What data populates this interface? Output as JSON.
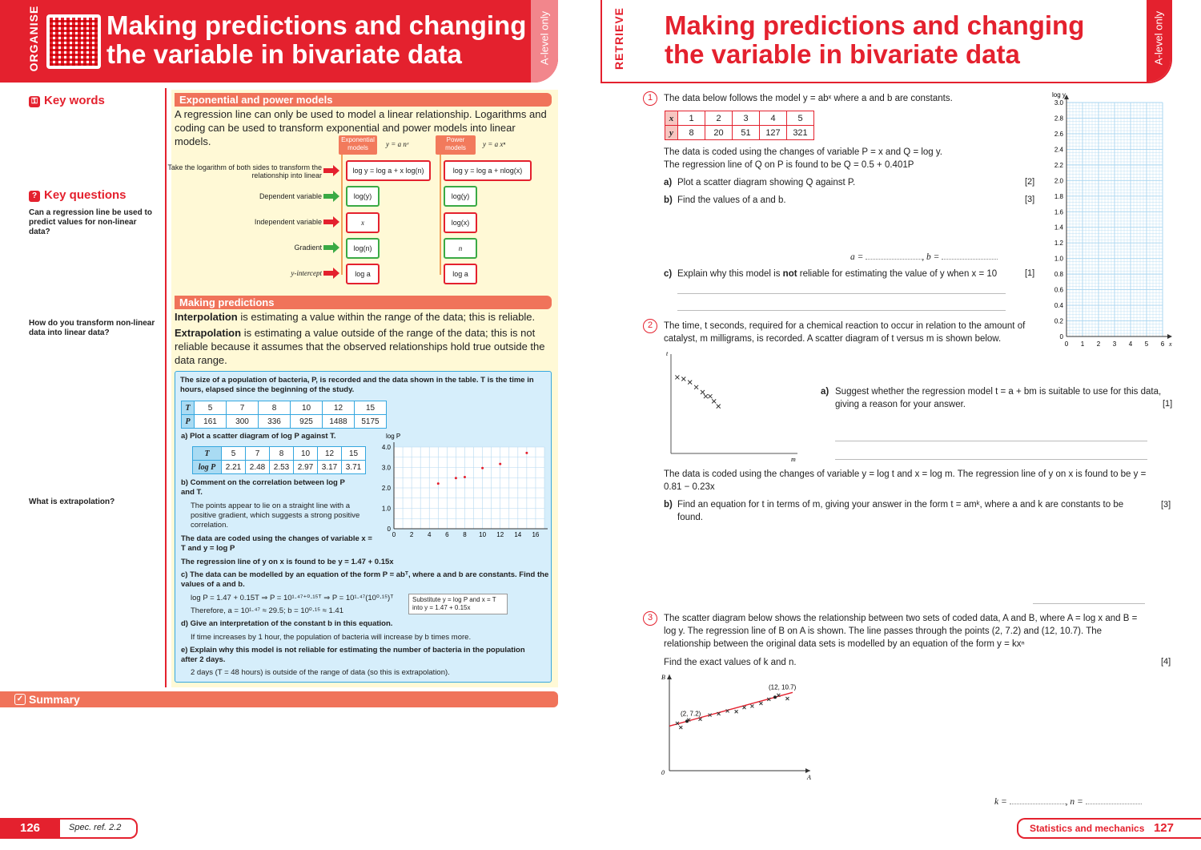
{
  "left_page": {
    "section_tag": "ORGANISE",
    "title": "Making predictions and changing the variable in bivariate data",
    "level_tag": "A-level only",
    "sidebar": {
      "key_words": "Key words",
      "key_questions": "Key questions",
      "q1": "Can a regression line be used to predict values for non-linear data?",
      "q2": "How do you transform non-linear data into linear data?",
      "q3": "What is extrapolation?"
    },
    "exp_section": {
      "heading": "Exponential and power models",
      "intro": "A regression line can only be used to model a linear relationship. Logarithms and coding can be used to transform exponential and power models into linear models.",
      "exp_head": "Exponential models",
      "exp_formula": "y = a nˣ",
      "pow_head": "Power models",
      "pow_formula": "y = a xⁿ",
      "rows": [
        {
          "label": "Take the logarithm of both sides to transform the relationship into linear",
          "exp": "log y = log a + x log(n)",
          "pow": "log y = log a + nlog(x)"
        },
        {
          "label": "Dependent variable",
          "exp": "log(y)",
          "pow": "log(y)"
        },
        {
          "label": "Independent variable",
          "exp": "x",
          "pow": "log(x)"
        },
        {
          "label": "Gradient",
          "exp": "log(n)",
          "pow": "n"
        },
        {
          "label": "y-intercept",
          "exp": "log a",
          "pow": "log a"
        }
      ]
    },
    "pred_section": {
      "heading": "Making predictions",
      "interp_term": "Interpolation",
      "interp_text": " is estimating a value within the range of the data; this is reliable.",
      "extrap_term": "Extrapolation",
      "extrap_text": " is estimating a value outside of the range of the data; this is not reliable because it assumes that the observed relationships hold true outside the data range."
    },
    "example": {
      "intro": "The size of a population of bacteria, P, is recorded and the data shown in the table. T is the time in hours, elapsed since the beginning of the study.",
      "table1": {
        "h1": "T",
        "h2": "P",
        "T": [
          "5",
          "7",
          "8",
          "10",
          "12",
          "15"
        ],
        "P": [
          "161",
          "300",
          "336",
          "925",
          "1488",
          "5175"
        ]
      },
      "a": "a) Plot a scatter diagram of log P against T.",
      "table2": {
        "h1": "T",
        "h2": "log P",
        "T": [
          "5",
          "7",
          "8",
          "10",
          "12",
          "15"
        ],
        "logP": [
          "2.21",
          "2.48",
          "2.53",
          "2.97",
          "3.17",
          "3.71"
        ]
      },
      "b": "b) Comment on the correlation between log P and T.",
      "b_ans": "The points appear to lie on a straight line with a positive gradient, which suggests a strong positive correlation.",
      "coded": "The data are coded using the changes of variable x = T and y = log P",
      "regline": "The regression line of y on x is found to be y = 1.47 + 0.15x",
      "c": "c) The data can be modelled by an equation of the form P = abᵀ, where a and b are constants. Find the values of a and b.",
      "c_ans1": "log P = 1.47 + 0.15T ⇒ P = 10¹·⁴⁷⁺⁰·¹⁵ᵀ ⇒ P = 10¹·⁴⁷(10⁰·¹⁵)ᵀ",
      "c_ans2": "Therefore, a = 10¹·⁴⁷ ≈ 29.5; b = 10⁰·¹⁵ ≈ 1.41",
      "c_note": "Substitute y = log P and x = T into y = 1.47 + 0.15x",
      "d": "d) Give an interpretation of the constant b in this equation.",
      "d_ans": "If time increases by 1 hour, the population of bacteria will increase by b times more.",
      "e": "e) Explain why this model is not reliable for estimating the number of bacteria in the population after 2 days.",
      "e_ans": "2 days (T = 48 hours) is outside of the range of data (so this is extrapolation)."
    },
    "summary": "Summary",
    "page_number": "126",
    "spec_ref": "Spec. ref.   2.2"
  },
  "chart_data": [
    {
      "type": "scatter",
      "ylabel": "log P",
      "xlabel": "T",
      "x_ticks": [
        "0",
        "2",
        "4",
        "6",
        "8",
        "10",
        "12",
        "14",
        "16"
      ],
      "y_ticks": [
        "0",
        "1.0",
        "2.0",
        "3.0",
        "4.0"
      ],
      "xlim": [
        0,
        17
      ],
      "ylim": [
        0,
        4
      ],
      "points": [
        [
          5,
          2.21
        ],
        [
          7,
          2.48
        ],
        [
          8,
          2.53
        ],
        [
          10,
          2.97
        ],
        [
          12,
          3.17
        ],
        [
          15,
          3.71
        ]
      ],
      "grid": true
    },
    {
      "type": "scatter",
      "ylabel": "log y",
      "xlabel": "x",
      "x_ticks": [
        "0",
        "1",
        "2",
        "3",
        "4",
        "5",
        "6"
      ],
      "y_ticks": [
        "0",
        "0.2",
        "0.4",
        "0.6",
        "0.8",
        "1.0",
        "1.2",
        "1.4",
        "1.6",
        "1.8",
        "2.0",
        "2.2",
        "2.4",
        "2.6",
        "2.8",
        "3.0"
      ],
      "xlim": [
        0,
        6
      ],
      "ylim": [
        0,
        3
      ],
      "points": [],
      "grid": true
    },
    {
      "type": "scatter",
      "xlabel": "m",
      "ylabel": "t",
      "points": [
        [
          1,
          9.2
        ],
        [
          2,
          9.0
        ],
        [
          3,
          8.6
        ],
        [
          4,
          8.0
        ],
        [
          5,
          7.4
        ],
        [
          5.5,
          6.9
        ],
        [
          6.2,
          6.9
        ],
        [
          6.8,
          6.3
        ],
        [
          7.5,
          5.7
        ]
      ],
      "xlim": [
        0,
        20
      ],
      "ylim": [
        0,
        12
      ]
    },
    {
      "type": "scatter",
      "xlabel": "A",
      "ylabel": "B",
      "origin": "0",
      "labels": [
        "(2, 7.2)",
        "(12, 10.7)"
      ],
      "points": [
        [
          0.9,
          6.9
        ],
        [
          1.3,
          6.3
        ],
        [
          2.2,
          7.4
        ],
        [
          3.5,
          7.5
        ],
        [
          4.6,
          8.1
        ],
        [
          5.6,
          8.3
        ],
        [
          6.6,
          8.7
        ],
        [
          7.6,
          8.6
        ],
        [
          8.5,
          9.2
        ],
        [
          9.4,
          9.4
        ],
        [
          10.4,
          9.8
        ],
        [
          11.3,
          10.4
        ],
        [
          12.4,
          11.0
        ],
        [
          13.4,
          10.5
        ]
      ],
      "line": [
        [
          0,
          6.5
        ],
        [
          14,
          11.4
        ]
      ],
      "line_points": [
        [
          2,
          7.2
        ],
        [
          12,
          10.7
        ]
      ],
      "xlim": [
        0,
        16
      ],
      "ylim": [
        0,
        14
      ]
    }
  ],
  "right_page": {
    "section_tag": "RETRIEVE",
    "title": "Making predictions and changing the variable in bivariate data",
    "level_tag": "A-level only",
    "q1": {
      "num": "1",
      "intro": "The data below follows the model y = abˣ where a and b are constants.",
      "x_head": "x",
      "y_head": "y",
      "x": [
        "1",
        "2",
        "3",
        "4",
        "5"
      ],
      "y": [
        "8",
        "20",
        "51",
        "127",
        "321"
      ],
      "coded1": "The data is coded using the changes of variable P = x and Q = log y.",
      "coded2": "The regression line of Q on P is found to be Q = 0.5 + 0.401P",
      "a_lbl": "a)",
      "a": "Plot a scatter diagram showing Q against P.",
      "a_marks": "[2]",
      "b_lbl": "b)",
      "b": "Find the values of a and b.",
      "b_marks": "[3]",
      "ab_answer_a": "a = ",
      "ab_answer_b": ", b = ",
      "c_lbl": "c)",
      "c_pre": "Explain why this model is ",
      "c_bold": "not",
      "c_post": " reliable for estimating the value of y when x = 10",
      "c_marks": "[1]"
    },
    "q2": {
      "num": "2",
      "intro": "The time, t seconds, required for a chemical reaction to occur in relation to the amount of catalyst, m milligrams, is recorded. A scatter diagram of t versus m is shown below.",
      "a_lbl": "a)",
      "a": "Suggest whether the regression model t = a + bm is suitable to use for this data, giving a reason for your answer.",
      "a_marks": "[1]",
      "coded": "The data is coded using the changes of variable y = log t and x = log m. The regression line of y on x is found to be y = 0.81 − 0.23x",
      "b_lbl": "b)",
      "b": "Find an equation for t in terms of m, giving your answer in the form t = amᵏ, where a and k are constants to be found.",
      "b_marks": "[3]"
    },
    "q3": {
      "num": "3",
      "intro": "The scatter diagram below shows the relationship between two sets of coded data, A and B, where A = log x and B = log y. The regression line of B on A is shown. The line passes through the points (2, 7.2) and (12, 10.7). The relationship between the original data sets is modelled by an equation of the form y = kxⁿ",
      "ask": "Find the exact values of k and n.",
      "marks": "[4]",
      "ans_k": "k = ",
      "ans_n": ", n = "
    },
    "footer_text": "Statistics and mechanics",
    "page_number": "127"
  },
  "colors": {
    "accent": "#e4212e",
    "orange": "#f0735a",
    "cream": "#fff9d6",
    "blue_box": "#d6eefb",
    "blue_border": "#35a7df",
    "green": "#3aaa45"
  }
}
